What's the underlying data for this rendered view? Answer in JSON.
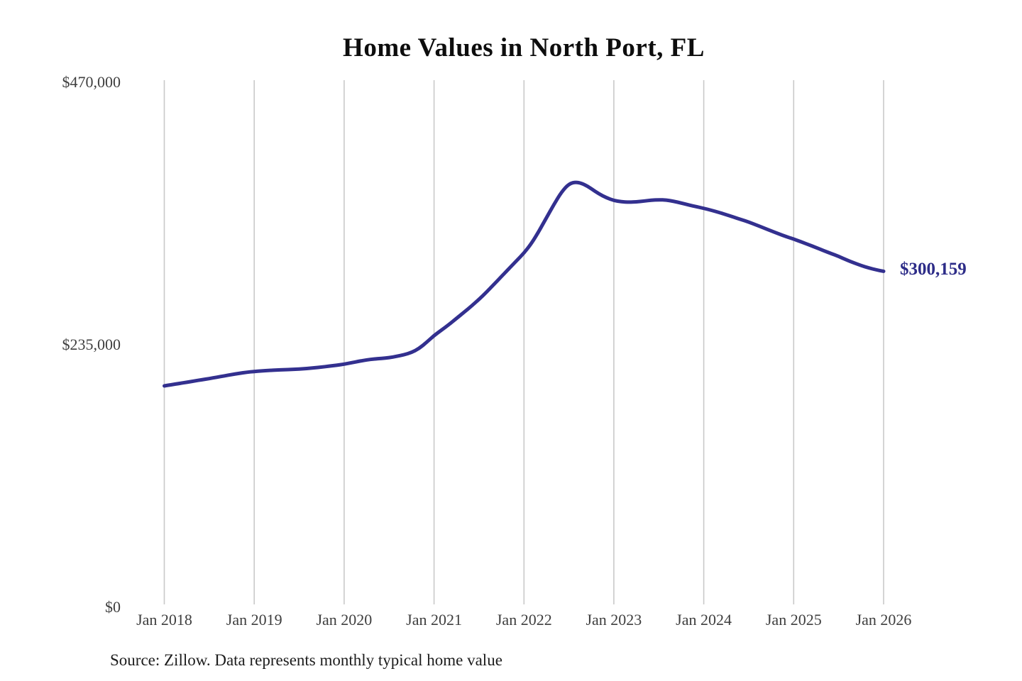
{
  "page": {
    "title": "Home Values in North Port, FL",
    "source_note": "Source: Zillow. Data represents monthly typical home value"
  },
  "colors": {
    "background": "#ffffff",
    "line": "#33308f",
    "grid": "#c9c9c9",
    "axis_text": "#3e3e3e",
    "title_text": "#0d0d0d",
    "annotation_text": "#2d2c88"
  },
  "chart_data": {
    "type": "line",
    "title": "Home Values in North Port, FL",
    "xlabel": "",
    "ylabel": "",
    "ylim": [
      0,
      470000
    ],
    "y_ticks": [
      0,
      235000,
      470000
    ],
    "y_tick_labels": [
      "$0",
      "$235,000",
      "$470,000"
    ],
    "x_tick_labels": [
      "Jan 2018",
      "Jan 2019",
      "Jan 2020",
      "Jan 2021",
      "Jan 2022",
      "Jan 2023",
      "Jan 2024",
      "Jan 2025",
      "Jan 2026"
    ],
    "grid": "vertical-only",
    "legend": "none",
    "line_color": "#33308f",
    "months": [
      "2018-01",
      "2018-02",
      "2018-03",
      "2018-04",
      "2018-05",
      "2018-06",
      "2018-07",
      "2018-08",
      "2018-09",
      "2018-10",
      "2018-11",
      "2018-12",
      "2019-01",
      "2019-02",
      "2019-03",
      "2019-04",
      "2019-05",
      "2019-06",
      "2019-07",
      "2019-08",
      "2019-09",
      "2019-10",
      "2019-11",
      "2019-12",
      "2020-01",
      "2020-02",
      "2020-03",
      "2020-04",
      "2020-05",
      "2020-06",
      "2020-07",
      "2020-08",
      "2020-09",
      "2020-10",
      "2020-11",
      "2020-12",
      "2021-01",
      "2021-02",
      "2021-03",
      "2021-04",
      "2021-05",
      "2021-06",
      "2021-07",
      "2021-08",
      "2021-09",
      "2021-10",
      "2021-11",
      "2021-12",
      "2022-01",
      "2022-02",
      "2022-03",
      "2022-04",
      "2022-05",
      "2022-06",
      "2022-07",
      "2022-08",
      "2022-09",
      "2022-10",
      "2022-11",
      "2022-12",
      "2023-01",
      "2023-02",
      "2023-03",
      "2023-04",
      "2023-05",
      "2023-06",
      "2023-07",
      "2023-08",
      "2023-09",
      "2023-10",
      "2023-11",
      "2023-12",
      "2024-01",
      "2024-02",
      "2024-03",
      "2024-04",
      "2024-05",
      "2024-06",
      "2024-07",
      "2024-08",
      "2024-09",
      "2024-10",
      "2024-11",
      "2024-12",
      "2025-01",
      "2025-02",
      "2025-03",
      "2025-04",
      "2025-05",
      "2025-06",
      "2025-07",
      "2025-08",
      "2025-09",
      "2025-10",
      "2025-11",
      "2025-12",
      "2026-01"
    ],
    "series": [
      {
        "name": "Monthly typical home value",
        "values": [
          197500,
          198600,
          199700,
          200800,
          201900,
          203000,
          204100,
          205300,
          206500,
          207700,
          208800,
          209700,
          210500,
          211000,
          211400,
          211700,
          212000,
          212300,
          212600,
          213100,
          213700,
          214400,
          215200,
          216000,
          217000,
          218300,
          219600,
          220800,
          221600,
          222200,
          222800,
          224000,
          225400,
          227500,
          231000,
          236500,
          242600,
          247500,
          252500,
          258000,
          263500,
          269000,
          275000,
          281500,
          288500,
          295500,
          302500,
          309500,
          316500,
          325000,
          336000,
          348000,
          360000,
          371000,
          378500,
          380200,
          378200,
          374000,
          369500,
          366000,
          363500,
          362400,
          362000,
          362300,
          363000,
          363800,
          364200,
          363900,
          362800,
          361200,
          359500,
          358000,
          356500,
          354800,
          352900,
          350800,
          348600,
          346400,
          344200,
          341600,
          339000,
          336300,
          333700,
          331200,
          329000,
          326500,
          324000,
          321300,
          318600,
          316000,
          313500,
          310500,
          307800,
          305300,
          303200,
          301500,
          300159
        ]
      }
    ],
    "annotation": {
      "text": "$300,159",
      "value": 300159,
      "month": "2026-01",
      "color": "#2d2c88"
    }
  }
}
